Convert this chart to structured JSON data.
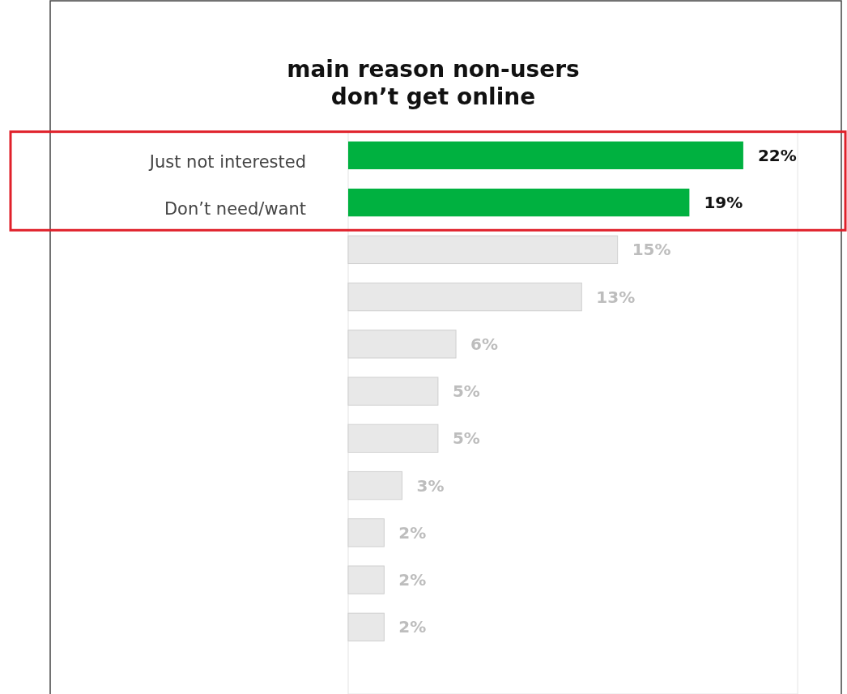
{
  "chart_data": {
    "type": "bar",
    "orientation": "horizontal",
    "title": "main reason non-users don’t get online",
    "categories": [
      "Just not interested",
      "Don’t need/want",
      null,
      null,
      null,
      null,
      null,
      null,
      null,
      null,
      null
    ],
    "values": [
      22,
      19,
      15,
      13,
      6,
      5,
      5,
      3,
      2,
      2,
      2
    ],
    "colors": [
      "#00b140",
      "#00b140",
      "#e8e8e8",
      "#e8e8e8",
      "#e8e8e8",
      "#e8e8e8",
      "#e8e8e8",
      "#e8e8e8",
      "#e8e8e8",
      "#e8e8e8",
      "#e8e8e8"
    ],
    "value_labels": [
      "22%",
      "19%",
      "15%",
      "13%",
      "6%",
      "5%",
      "5%",
      "3%",
      "2%",
      "2%",
      "2%"
    ]
  }
}
